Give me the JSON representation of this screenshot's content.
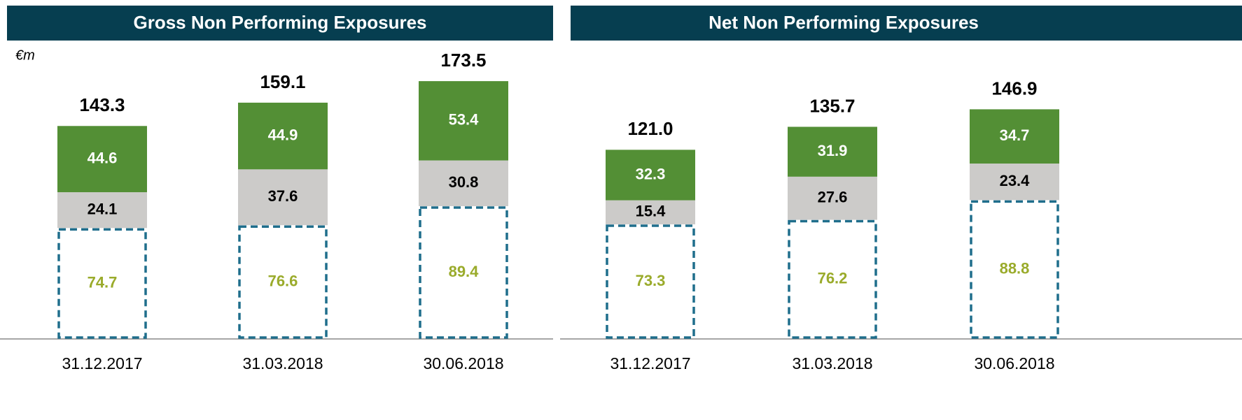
{
  "chart_data": [
    {
      "type": "bar",
      "stacked": true,
      "title": "Gross Non Performing Exposures",
      "unit": "€m",
      "categories": [
        "31.12.2017",
        "31.03.2018",
        "30.06.2018"
      ],
      "series": [
        {
          "color": "#ffffff",
          "border": "#1f6e8c",
          "dashed": true,
          "label_color": "#9aab2b",
          "values": [
            74.7,
            76.6,
            89.4
          ]
        },
        {
          "color": "#cccbc9",
          "label_color": "#000000",
          "values": [
            24.1,
            37.6,
            30.8
          ]
        },
        {
          "color": "#538f35",
          "label_color": "#ffffff",
          "values": [
            44.6,
            44.9,
            53.4
          ]
        }
      ],
      "totals": [
        143.3,
        159.1,
        173.5
      ],
      "ylim": [
        0,
        200
      ]
    },
    {
      "type": "bar",
      "stacked": true,
      "title": "Net Non Performing Exposures",
      "categories": [
        "31.12.2017",
        "31.03.2018",
        "30.06.2018"
      ],
      "series": [
        {
          "color": "#ffffff",
          "border": "#1f6e8c",
          "dashed": true,
          "label_color": "#9aab2b",
          "values": [
            73.3,
            76.2,
            88.8
          ]
        },
        {
          "color": "#cccbc9",
          "label_color": "#000000",
          "values": [
            15.4,
            27.6,
            23.4
          ]
        },
        {
          "color": "#538f35",
          "label_color": "#ffffff",
          "values": [
            32.3,
            31.9,
            34.7
          ]
        }
      ],
      "totals": [
        121.0,
        135.7,
        146.9
      ],
      "ylim": [
        0,
        190
      ]
    }
  ]
}
